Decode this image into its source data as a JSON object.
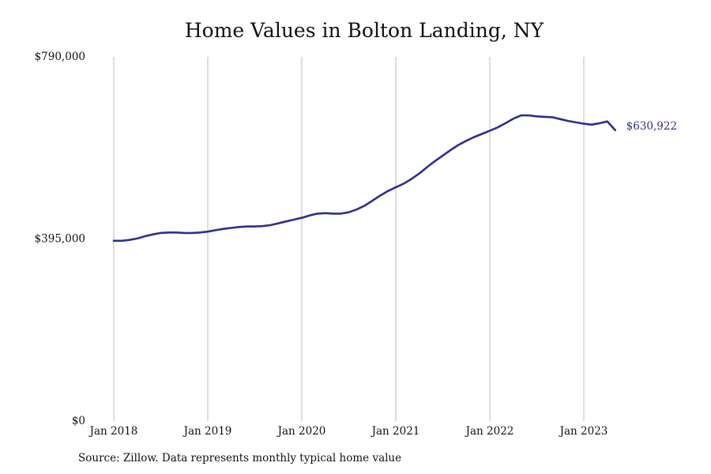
{
  "title": "Home Values in Bolton Landing, NY",
  "source_note": "Source: Zillow. Data represents monthly typical home value",
  "colors": {
    "line": "#2e2f8f",
    "gridline": "#bdbdbd",
    "text": "#111111"
  },
  "chart_data": {
    "type": "line",
    "title": "Home Values in Bolton Landing, NY",
    "xlabel": "",
    "ylabel": "",
    "ylim": [
      0,
      790000
    ],
    "y_ticks": [
      {
        "value": 0,
        "label": "$0"
      },
      {
        "value": 395000,
        "label": "$395,000"
      },
      {
        "value": 790000,
        "label": "$790,000"
      }
    ],
    "x_ticks": [
      {
        "value": "2018-01",
        "label": "Jan 2018"
      },
      {
        "value": "2019-01",
        "label": "Jan 2019"
      },
      {
        "value": "2020-01",
        "label": "Jan 2020"
      },
      {
        "value": "2021-01",
        "label": "Jan 2021"
      },
      {
        "value": "2022-01",
        "label": "Jan 2022"
      },
      {
        "value": "2023-01",
        "label": "Jan 2023"
      }
    ],
    "grid": "vertical",
    "end_label": "$630,922",
    "series": [
      {
        "x": [
          "2018-01",
          "2018-02",
          "2018-03",
          "2018-04",
          "2018-05",
          "2018-06",
          "2018-07",
          "2018-08",
          "2018-09",
          "2018-10",
          "2018-11",
          "2018-12",
          "2019-01",
          "2019-02",
          "2019-03",
          "2019-04",
          "2019-05",
          "2019-06",
          "2019-07",
          "2019-08",
          "2019-09",
          "2019-10",
          "2019-11",
          "2019-12",
          "2020-01",
          "2020-02",
          "2020-03",
          "2020-04",
          "2020-05",
          "2020-06",
          "2020-07",
          "2020-08",
          "2020-09",
          "2020-10",
          "2020-11",
          "2020-12",
          "2021-01",
          "2021-02",
          "2021-03",
          "2021-04",
          "2021-05",
          "2021-06",
          "2021-07",
          "2021-08",
          "2021-09",
          "2021-10",
          "2021-11",
          "2021-12",
          "2022-01",
          "2022-02",
          "2022-03",
          "2022-04",
          "2022-05",
          "2022-06",
          "2022-07",
          "2022-08",
          "2022-09",
          "2022-10",
          "2022-11",
          "2022-12",
          "2023-01",
          "2023-02",
          "2023-03",
          "2023-04",
          "2023-05"
        ],
        "values": [
          391000,
          391000,
          393000,
          396000,
          401000,
          405000,
          408000,
          409000,
          409000,
          408000,
          408000,
          409000,
          411000,
          414000,
          417000,
          419000,
          421000,
          422000,
          422000,
          423000,
          425000,
          429000,
          433000,
          437000,
          441000,
          446000,
          450000,
          451000,
          450000,
          450000,
          453000,
          459000,
          467000,
          478000,
          489000,
          499000,
          507000,
          515000,
          525000,
          537000,
          551000,
          564000,
          576000,
          588000,
          599000,
          608000,
          616000,
          623000,
          630000,
          637000,
          646000,
          656000,
          663000,
          663000,
          661000,
          660000,
          659000,
          655000,
          651000,
          648000,
          645000,
          643000,
          646000,
          650000,
          630922
        ]
      }
    ]
  }
}
